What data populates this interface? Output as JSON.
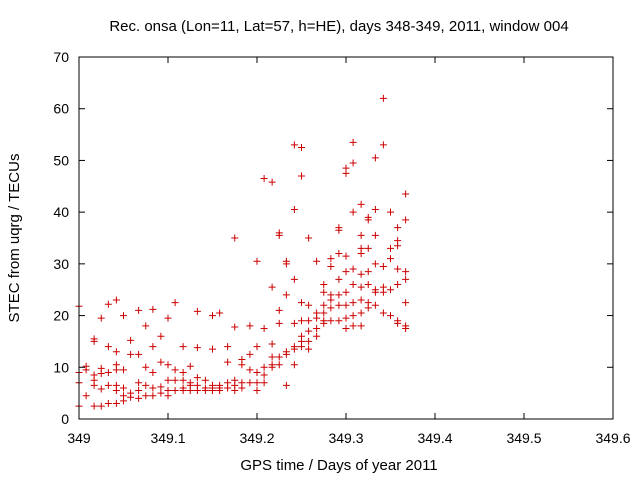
{
  "chart_data": {
    "type": "scatter",
    "title": "Rec. onsa (Lon=11, Lat=57, h=HE), days 348-349, 2011, window 004",
    "xlabel": "GPS time / Days of year 2011",
    "ylabel": "STEC from uqrg / TECUs",
    "xlim": [
      349,
      349.6
    ],
    "ylim": [
      0,
      70
    ],
    "x_ticks": [
      349,
      349.1,
      349.2,
      349.3,
      349.4,
      349.5,
      349.6
    ],
    "x_tick_labels": [
      "349",
      "349.1",
      "349.2",
      "349.3",
      "349.4",
      "349.5",
      "349.6"
    ],
    "y_ticks": [
      0,
      10,
      20,
      30,
      40,
      50,
      60,
      70
    ],
    "y_tick_labels": [
      "0",
      "10",
      "20",
      "30",
      "40",
      "50",
      "60",
      "70"
    ],
    "grid": false,
    "legend": "none",
    "marker": "+",
    "color": "#cc0000",
    "series": [
      {
        "points": [
          [
            349.0,
            2.5
          ],
          [
            349.0,
            7.0
          ],
          [
            349.0,
            9.0
          ],
          [
            349.0,
            21.8
          ],
          [
            349.008,
            4.5
          ],
          [
            349.008,
            9.5
          ],
          [
            349.008,
            10.2
          ],
          [
            349.017,
            2.5
          ],
          [
            349.017,
            6.5
          ],
          [
            349.017,
            7.5
          ],
          [
            349.017,
            8.5
          ],
          [
            349.017,
            15.0
          ],
          [
            349.017,
            15.5
          ],
          [
            349.025,
            2.5
          ],
          [
            349.025,
            5.8
          ],
          [
            349.025,
            8.8
          ],
          [
            349.025,
            9.8
          ],
          [
            349.025,
            19.5
          ],
          [
            349.033,
            3.0
          ],
          [
            349.033,
            6.5
          ],
          [
            349.033,
            9.0
          ],
          [
            349.033,
            14.0
          ],
          [
            349.033,
            22.2
          ],
          [
            349.042,
            3.0
          ],
          [
            349.042,
            5.5
          ],
          [
            349.042,
            6.5
          ],
          [
            349.042,
            9.5
          ],
          [
            349.042,
            10.5
          ],
          [
            349.042,
            13.0
          ],
          [
            349.042,
            23.0
          ],
          [
            349.05,
            3.5
          ],
          [
            349.05,
            4.5
          ],
          [
            349.05,
            6.0
          ],
          [
            349.05,
            9.5
          ],
          [
            349.05,
            20.0
          ],
          [
            349.058,
            4.2
          ],
          [
            349.058,
            5.0
          ],
          [
            349.058,
            12.5
          ],
          [
            349.058,
            15.2
          ],
          [
            349.067,
            4.0
          ],
          [
            349.067,
            5.5
          ],
          [
            349.067,
            7.0
          ],
          [
            349.067,
            12.5
          ],
          [
            349.067,
            21.0
          ],
          [
            349.075,
            4.5
          ],
          [
            349.075,
            6.5
          ],
          [
            349.075,
            10.0
          ],
          [
            349.075,
            18.0
          ],
          [
            349.083,
            4.5
          ],
          [
            349.083,
            6.0
          ],
          [
            349.083,
            9.0
          ],
          [
            349.083,
            14.0
          ],
          [
            349.083,
            21.2
          ],
          [
            349.092,
            5.0
          ],
          [
            349.092,
            6.2
          ],
          [
            349.092,
            11.0
          ],
          [
            349.092,
            16.0
          ],
          [
            349.1,
            4.5
          ],
          [
            349.1,
            5.5
          ],
          [
            349.1,
            7.5
          ],
          [
            349.1,
            10.5
          ],
          [
            349.1,
            19.5
          ],
          [
            349.108,
            5.5
          ],
          [
            349.108,
            7.5
          ],
          [
            349.108,
            9.5
          ],
          [
            349.108,
            22.5
          ],
          [
            349.117,
            5.5
          ],
          [
            349.117,
            6.0
          ],
          [
            349.117,
            7.5
          ],
          [
            349.117,
            9.0
          ],
          [
            349.117,
            14.0
          ],
          [
            349.125,
            5.5
          ],
          [
            349.125,
            6.5
          ],
          [
            349.125,
            7.0
          ],
          [
            349.125,
            10.2
          ],
          [
            349.133,
            5.5
          ],
          [
            349.133,
            6.5
          ],
          [
            349.133,
            8.0
          ],
          [
            349.133,
            13.8
          ],
          [
            349.133,
            20.8
          ],
          [
            349.142,
            5.5
          ],
          [
            349.142,
            6.0
          ],
          [
            349.142,
            7.5
          ],
          [
            349.15,
            5.5
          ],
          [
            349.15,
            6.0
          ],
          [
            349.15,
            6.5
          ],
          [
            349.15,
            13.5
          ],
          [
            349.15,
            20.0
          ],
          [
            349.158,
            5.5
          ],
          [
            349.158,
            6.0
          ],
          [
            349.158,
            6.5
          ],
          [
            349.158,
            20.5
          ],
          [
            349.167,
            6.0
          ],
          [
            349.167,
            7.0
          ],
          [
            349.167,
            11.0
          ],
          [
            349.167,
            14.0
          ],
          [
            349.175,
            5.5
          ],
          [
            349.175,
            6.5
          ],
          [
            349.175,
            7.5
          ],
          [
            349.175,
            17.8
          ],
          [
            349.175,
            35.0
          ],
          [
            349.183,
            6.0
          ],
          [
            349.183,
            7.0
          ],
          [
            349.183,
            10.5
          ],
          [
            349.183,
            11.5
          ],
          [
            349.192,
            7.0
          ],
          [
            349.192,
            9.5
          ],
          [
            349.192,
            12.5
          ],
          [
            349.192,
            18.0
          ],
          [
            349.2,
            5.5
          ],
          [
            349.2,
            7.0
          ],
          [
            349.2,
            9.0
          ],
          [
            349.2,
            14.0
          ],
          [
            349.2,
            30.5
          ],
          [
            349.208,
            7.0
          ],
          [
            349.208,
            8.5
          ],
          [
            349.208,
            10.0
          ],
          [
            349.208,
            17.5
          ],
          [
            349.208,
            46.5
          ],
          [
            349.217,
            10.0
          ],
          [
            349.217,
            10.5
          ],
          [
            349.217,
            12.0
          ],
          [
            349.217,
            14.5
          ],
          [
            349.217,
            25.5
          ],
          [
            349.217,
            45.8
          ],
          [
            349.225,
            10.5
          ],
          [
            349.225,
            12.0
          ],
          [
            349.225,
            18.5
          ],
          [
            349.225,
            21.0
          ],
          [
            349.225,
            35.5
          ],
          [
            349.225,
            36.0
          ],
          [
            349.233,
            6.5
          ],
          [
            349.233,
            12.5
          ],
          [
            349.233,
            13.0
          ],
          [
            349.233,
            24.0
          ],
          [
            349.233,
            30.0
          ],
          [
            349.233,
            30.5
          ],
          [
            349.242,
            10.5
          ],
          [
            349.242,
            13.5
          ],
          [
            349.242,
            14.0
          ],
          [
            349.242,
            18.5
          ],
          [
            349.242,
            27.0
          ],
          [
            349.242,
            40.5
          ],
          [
            349.242,
            53.0
          ],
          [
            349.25,
            14.0
          ],
          [
            349.25,
            15.0
          ],
          [
            349.25,
            16.0
          ],
          [
            349.25,
            19.0
          ],
          [
            349.25,
            22.5
          ],
          [
            349.25,
            47.0
          ],
          [
            349.25,
            52.5
          ],
          [
            349.258,
            13.5
          ],
          [
            349.258,
            15.0
          ],
          [
            349.258,
            17.0
          ],
          [
            349.258,
            19.0
          ],
          [
            349.258,
            22.0
          ],
          [
            349.258,
            35.0
          ],
          [
            349.267,
            16.0
          ],
          [
            349.267,
            17.5
          ],
          [
            349.267,
            19.5
          ],
          [
            349.267,
            20.5
          ],
          [
            349.267,
            30.5
          ],
          [
            349.275,
            18.5
          ],
          [
            349.275,
            19.0
          ],
          [
            349.275,
            20.5
          ],
          [
            349.275,
            22.0
          ],
          [
            349.275,
            24.5
          ],
          [
            349.275,
            26.0
          ],
          [
            349.283,
            19.0
          ],
          [
            349.283,
            21.5
          ],
          [
            349.283,
            23.0
          ],
          [
            349.283,
            24.0
          ],
          [
            349.283,
            29.5
          ],
          [
            349.283,
            31.0
          ],
          [
            349.292,
            19.0
          ],
          [
            349.292,
            22.0
          ],
          [
            349.292,
            24.0
          ],
          [
            349.292,
            27.0
          ],
          [
            349.292,
            32.0
          ],
          [
            349.292,
            36.5
          ],
          [
            349.292,
            37.0
          ],
          [
            349.3,
            17.5
          ],
          [
            349.3,
            19.5
          ],
          [
            349.3,
            22.0
          ],
          [
            349.3,
            24.5
          ],
          [
            349.3,
            28.5
          ],
          [
            349.3,
            31.5
          ],
          [
            349.3,
            47.5
          ],
          [
            349.3,
            48.5
          ],
          [
            349.308,
            18.0
          ],
          [
            349.308,
            20.0
          ],
          [
            349.308,
            22.5
          ],
          [
            349.308,
            26.0
          ],
          [
            349.308,
            29.0
          ],
          [
            349.308,
            40.0
          ],
          [
            349.308,
            49.5
          ],
          [
            349.308,
            53.5
          ],
          [
            349.317,
            18.0
          ],
          [
            349.317,
            20.5
          ],
          [
            349.317,
            23.0
          ],
          [
            349.317,
            25.5
          ],
          [
            349.317,
            28.0
          ],
          [
            349.317,
            32.0
          ],
          [
            349.317,
            33.0
          ],
          [
            349.317,
            35.5
          ],
          [
            349.317,
            41.5
          ],
          [
            349.325,
            21.5
          ],
          [
            349.325,
            22.5
          ],
          [
            349.325,
            26.0
          ],
          [
            349.325,
            28.5
          ],
          [
            349.325,
            33.0
          ],
          [
            349.325,
            38.5
          ],
          [
            349.325,
            39.0
          ],
          [
            349.333,
            22.0
          ],
          [
            349.333,
            24.5
          ],
          [
            349.333,
            25.0
          ],
          [
            349.333,
            30.0
          ],
          [
            349.333,
            35.5
          ],
          [
            349.333,
            40.5
          ],
          [
            349.333,
            50.5
          ],
          [
            349.342,
            20.5
          ],
          [
            349.342,
            24.5
          ],
          [
            349.342,
            25.5
          ],
          [
            349.342,
            29.5
          ],
          [
            349.342,
            53.0
          ],
          [
            349.342,
            62.0
          ],
          [
            349.35,
            20.0
          ],
          [
            349.35,
            25.0
          ],
          [
            349.35,
            31.0
          ],
          [
            349.35,
            33.0
          ],
          [
            349.35,
            40.0
          ],
          [
            349.358,
            18.5
          ],
          [
            349.358,
            19.0
          ],
          [
            349.358,
            26.0
          ],
          [
            349.358,
            29.0
          ],
          [
            349.358,
            33.5
          ],
          [
            349.358,
            34.5
          ],
          [
            349.358,
            37.0
          ],
          [
            349.367,
            17.5
          ],
          [
            349.367,
            18.0
          ],
          [
            349.367,
            22.5
          ],
          [
            349.367,
            27.0
          ],
          [
            349.367,
            28.5
          ],
          [
            349.367,
            38.5
          ],
          [
            349.367,
            43.5
          ]
        ]
      }
    ]
  }
}
